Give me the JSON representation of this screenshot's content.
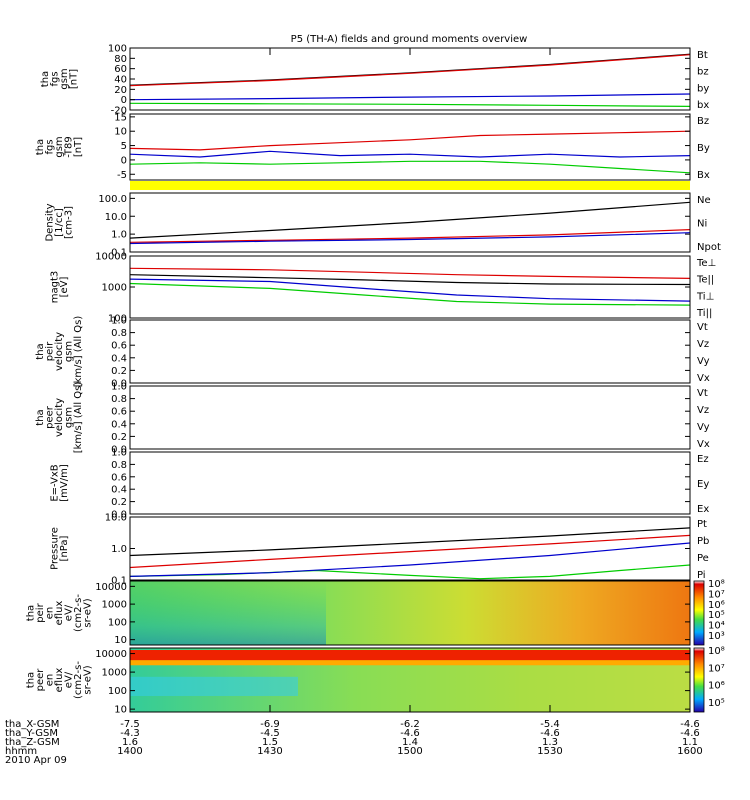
{
  "title": "P5 (TH-A) fields and ground moments overview",
  "colors": {
    "black": "#000000",
    "red": "#dd0000",
    "green": "#00cc00",
    "blue": "#0000cc",
    "yellow": "#ffff00"
  },
  "panels": [
    {
      "id": "fgs",
      "ylabel": [
        "tha",
        "fgs",
        "gsm",
        "[nT]"
      ],
      "scale": "linear",
      "ylim": [
        -20,
        100
      ],
      "ticks": [
        "100",
        "80",
        "60",
        "40",
        "20",
        "0",
        "-20"
      ],
      "tickvals": [
        100,
        80,
        60,
        40,
        20,
        0,
        -20
      ],
      "series": [
        {
          "name": "Bt",
          "color": "#000000",
          "x": [
            0,
            30,
            60,
            90,
            120
          ],
          "y": [
            28,
            38,
            52,
            68,
            88
          ]
        },
        {
          "name": "bz",
          "color": "#dd0000",
          "x": [
            0,
            30,
            60,
            90,
            120
          ],
          "y": [
            27,
            37,
            51,
            67,
            87
          ]
        },
        {
          "name": "by",
          "color": "#00cc00",
          "x": [
            0,
            30,
            60,
            90,
            120
          ],
          "y": [
            -7,
            -8,
            -9,
            -11,
            -13
          ]
        },
        {
          "name": "bx",
          "color": "#0000cc",
          "x": [
            0,
            30,
            60,
            90,
            120
          ],
          "y": [
            0,
            2,
            5,
            7,
            11
          ]
        }
      ]
    },
    {
      "id": "fgs_t89",
      "ylabel": [
        "tha",
        "fgs",
        "gsm",
        "-T89",
        "[nT]"
      ],
      "scale": "linear",
      "ylim": [
        -7,
        16
      ],
      "ticks": [
        "15",
        "10",
        "5",
        "0",
        "-5"
      ],
      "tickvals": [
        15,
        10,
        5,
        0,
        -5
      ],
      "series": [
        {
          "name": "Bz",
          "color": "#dd0000",
          "x": [
            0,
            15,
            30,
            45,
            60,
            75,
            90,
            105,
            120
          ],
          "y": [
            4,
            3.5,
            5,
            6,
            7,
            8.5,
            9,
            9.5,
            10
          ]
        },
        {
          "name": "By",
          "color": "#00cc00",
          "x": [
            0,
            15,
            30,
            45,
            60,
            75,
            90,
            105,
            120
          ],
          "y": [
            -1.5,
            -1,
            -1.5,
            -1,
            -0.5,
            -0.5,
            -1.5,
            -3,
            -4.5
          ]
        },
        {
          "name": "Bx",
          "color": "#0000cc",
          "x": [
            0,
            15,
            30,
            45,
            60,
            75,
            90,
            105,
            120
          ],
          "y": [
            2,
            1,
            3,
            1.5,
            2,
            1,
            2,
            1,
            1.5
          ]
        }
      ]
    },
    {
      "id": "density",
      "ylabel": [
        "Density",
        "[1/cc]",
        "[cm-3]"
      ],
      "scale": "log",
      "ylim": [
        0.1,
        200
      ],
      "ticks": [
        "100.0",
        "10.0",
        "1.0",
        "0.1"
      ],
      "tickvals": [
        100,
        10,
        1,
        0.1
      ],
      "series": [
        {
          "name": "Ne",
          "color": "#dd0000",
          "x": [
            0,
            30,
            60,
            90,
            120
          ],
          "y": [
            0.35,
            0.45,
            0.6,
            0.9,
            1.8
          ]
        },
        {
          "name": "Ni",
          "color": "#000000",
          "x": [
            0,
            30,
            60,
            90,
            120
          ],
          "y": [
            0.6,
            1.6,
            4.5,
            15,
            60
          ]
        },
        {
          "name": "Npot",
          "color": "#0000cc",
          "x": [
            0,
            30,
            60,
            90,
            120
          ],
          "y": [
            0.3,
            0.4,
            0.5,
            0.7,
            1.2
          ]
        }
      ]
    },
    {
      "id": "temp",
      "ylabel": [
        "magt3",
        "[eV]"
      ],
      "scale": "log",
      "ylim": [
        100,
        10000
      ],
      "ticks": [
        "10000",
        "1000",
        "100"
      ],
      "tickvals": [
        10000,
        1000,
        100
      ],
      "series": [
        {
          "name": "Te⊥",
          "color": "#dd0000",
          "x": [
            0,
            30,
            50,
            70,
            90,
            120
          ],
          "y": [
            4000,
            3600,
            3000,
            2500,
            2200,
            1900
          ]
        },
        {
          "name": "Te||",
          "color": "#000000",
          "x": [
            0,
            30,
            50,
            70,
            90,
            120
          ],
          "y": [
            2500,
            2000,
            1700,
            1400,
            1250,
            1200
          ]
        },
        {
          "name": "Ti⊥",
          "color": "#0000cc",
          "x": [
            0,
            30,
            50,
            70,
            90,
            120
          ],
          "y": [
            1800,
            1500,
            900,
            550,
            420,
            350
          ]
        },
        {
          "name": "Ti||",
          "color": "#00cc00",
          "x": [
            0,
            30,
            50,
            70,
            90,
            120
          ],
          "y": [
            1300,
            900,
            550,
            340,
            280,
            260
          ]
        }
      ]
    },
    {
      "id": "peir_vel",
      "ylabel": [
        "tha",
        "peir",
        "velocity",
        "gsm",
        "[km/s] (All Qs)"
      ],
      "scale": "linear",
      "ylim": [
        0,
        1
      ],
      "ticks": [
        "1.0",
        "0.8",
        "0.6",
        "0.4",
        "0.2",
        "0.0"
      ],
      "tickvals": [
        1,
        0.8,
        0.6,
        0.4,
        0.2,
        0
      ],
      "series": [
        {
          "name": "Vt",
          "color": "#000000"
        },
        {
          "name": "Vz",
          "color": "#dd0000"
        },
        {
          "name": "Vy",
          "color": "#00cc00"
        },
        {
          "name": "Vx",
          "color": "#0000cc"
        }
      ]
    },
    {
      "id": "peer_vel",
      "ylabel": [
        "tha",
        "peer",
        "velocity",
        "gsm",
        "[km/s] (All Qs)"
      ],
      "scale": "linear",
      "ylim": [
        0,
        1
      ],
      "ticks": [
        "1.0",
        "0.8",
        "0.6",
        "0.4",
        "0.2",
        "0.0"
      ],
      "tickvals": [
        1,
        0.8,
        0.6,
        0.4,
        0.2,
        0
      ],
      "series": [
        {
          "name": "Vt",
          "color": "#000000"
        },
        {
          "name": "Vz",
          "color": "#dd0000"
        },
        {
          "name": "Vy",
          "color": "#00cc00"
        },
        {
          "name": "Vx",
          "color": "#0000cc"
        }
      ]
    },
    {
      "id": "efield",
      "ylabel": [
        "E=-VxB",
        "[mV/m]"
      ],
      "scale": "linear",
      "ylim": [
        0,
        1
      ],
      "ticks": [
        "1.0",
        "0.8",
        "0.6",
        "0.4",
        "0.2",
        "0.0"
      ],
      "tickvals": [
        1,
        0.8,
        0.6,
        0.4,
        0.2,
        0
      ],
      "series": [
        {
          "name": "Ez",
          "color": "#dd0000"
        },
        {
          "name": "Ey",
          "color": "#00cc00"
        },
        {
          "name": "Ex",
          "color": "#0000cc"
        }
      ]
    },
    {
      "id": "pressure",
      "ylabel": [
        "Pressure",
        "[nPa]"
      ],
      "scale": "log",
      "ylim": [
        0.1,
        10
      ],
      "ticks": [
        "10.0",
        "1.0",
        "0.1"
      ],
      "tickvals": [
        10,
        1,
        0.1
      ],
      "series": [
        {
          "name": "Pt",
          "color": "#000000",
          "x": [
            0,
            30,
            60,
            90,
            120
          ],
          "y": [
            0.6,
            0.9,
            1.5,
            2.5,
            4.5
          ]
        },
        {
          "name": "Pb",
          "color": "#dd0000",
          "x": [
            0,
            30,
            60,
            90,
            120
          ],
          "y": [
            0.25,
            0.45,
            0.8,
            1.4,
            2.6
          ]
        },
        {
          "name": "Pe",
          "color": "#00cc00",
          "x": [
            0,
            20,
            40,
            60,
            75,
            90,
            105,
            120
          ],
          "y": [
            0.13,
            0.15,
            0.2,
            0.14,
            0.11,
            0.13,
            0.2,
            0.3
          ]
        },
        {
          "name": "Pi",
          "color": "#0000cc",
          "x": [
            0,
            30,
            60,
            90,
            120
          ],
          "y": [
            0.13,
            0.17,
            0.3,
            0.6,
            1.5
          ]
        }
      ]
    },
    {
      "id": "peir_eflux",
      "ylabel": [
        "tha",
        "peir",
        "en",
        "eflux",
        "eV/",
        "(cm2-s-",
        "sr-eV)"
      ],
      "scale": "log",
      "ylim": [
        5,
        20000
      ],
      "ticks": [
        "10000",
        "1000",
        "100",
        "10"
      ],
      "tickvals": [
        10000,
        1000,
        100,
        10
      ],
      "spectrogram": true,
      "colorbar": {
        "labels": [
          "10⁸",
          "10⁷",
          "10⁶",
          "10⁵",
          "10⁴",
          "10³"
        ]
      }
    },
    {
      "id": "peer_eflux",
      "ylabel": [
        "tha",
        "peer",
        "en",
        "eflux",
        "eV/",
        "(cm2-s-",
        "sr-eV)"
      ],
      "scale": "log",
      "ylim": [
        7,
        20000
      ],
      "ticks": [
        "10000",
        "1000",
        "100",
        "10"
      ],
      "tickvals": [
        10000,
        1000,
        100,
        10
      ],
      "spectrogram": true,
      "colorbar": {
        "labels": [
          "10⁸",
          "10⁷",
          "10⁶",
          "10⁵"
        ]
      }
    }
  ],
  "xaxis": {
    "rows": [
      {
        "label": "tha_X-GSM",
        "values": [
          "-7.5",
          "-6.9",
          "-6.2",
          "-5.4",
          "-4.6"
        ]
      },
      {
        "label": "tha_Y-GSM",
        "values": [
          "-4.3",
          "-4.5",
          "-4.6",
          "-4.6",
          "-4.6"
        ]
      },
      {
        "label": "tha_Z-GSM",
        "values": [
          "1.6",
          "1.5",
          "1.4",
          "1.3",
          "1.1"
        ]
      },
      {
        "label": "hhmm",
        "values": [
          "1400",
          "1430",
          "1500",
          "1530",
          "1600"
        ]
      }
    ],
    "date": "2010 Apr 09",
    "tick_minutes": [
      0,
      30,
      60,
      90,
      120
    ]
  }
}
